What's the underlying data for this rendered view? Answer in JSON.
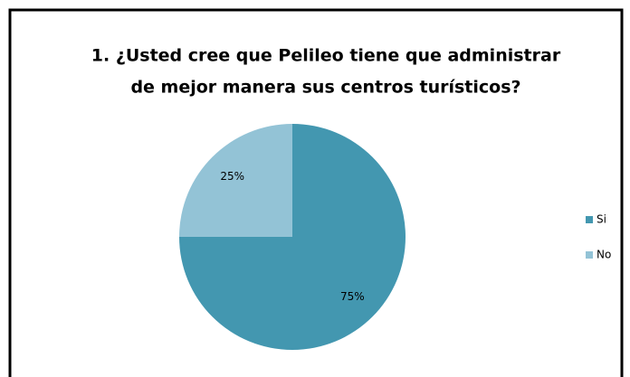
{
  "chart_data": {
    "type": "pie",
    "title": [
      "1. ¿Usted cree que Pelileo tiene que administrar",
      "de mejor manera sus centros turísticos?"
    ],
    "categories": [
      "Si",
      "No"
    ],
    "values": [
      75,
      25
    ],
    "value_labels": [
      "75%",
      "25%"
    ],
    "colors": [
      "#4397b0",
      "#93c3d6"
    ],
    "legend": "right"
  }
}
